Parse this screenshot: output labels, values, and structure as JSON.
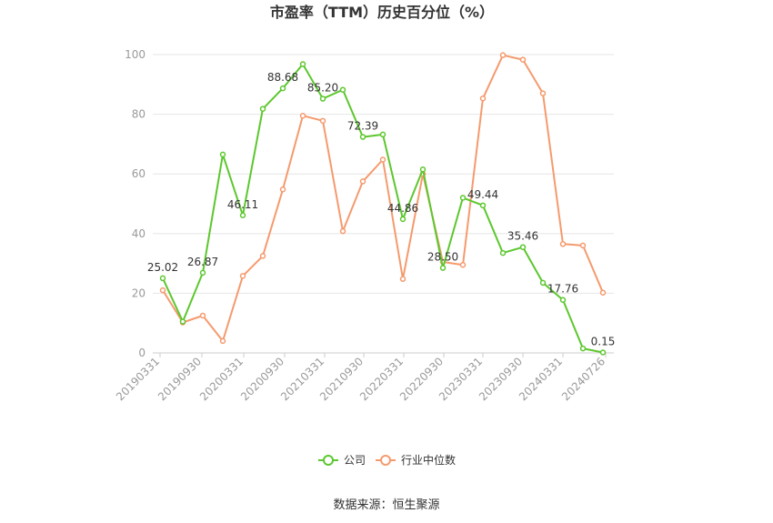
{
  "chart_data": {
    "type": "line",
    "title": "市盈率（TTM）历史百分位（%）",
    "xlabel": "",
    "ylabel": "",
    "ylim": [
      0,
      100
    ],
    "y_ticks": [
      0,
      20,
      40,
      60,
      80,
      100
    ],
    "x_tick_labels": [
      "20190331",
      "20190930",
      "20200331",
      "20200930",
      "20210331",
      "20210930",
      "20220331",
      "20220930",
      "20230331",
      "20230930",
      "20240331",
      "20240726"
    ],
    "grid": true,
    "legend_position": "bottom",
    "series": [
      {
        "name": "公司",
        "color": "#5cc72e",
        "values": [
          25.02,
          10.5,
          26.87,
          66.5,
          46.11,
          81.8,
          88.68,
          96.8,
          85.2,
          88.2,
          72.39,
          73.2,
          44.86,
          61.5,
          28.5,
          52.0,
          49.44,
          33.5,
          35.46,
          23.5,
          17.76,
          1.5,
          0.15
        ],
        "labels": {
          "0": "25.02",
          "2": "26.87",
          "4": "46.11",
          "6": "88.68",
          "8": "85.20",
          "10": "72.39",
          "12": "44.86",
          "14": "28.50",
          "16": "49.44",
          "18": "35.46",
          "20": "17.76",
          "22": "0.15"
        }
      },
      {
        "name": "行业中位数",
        "color": "#f59a6e",
        "values": [
          21.0,
          10.2,
          12.5,
          4.0,
          25.8,
          32.5,
          54.8,
          79.5,
          77.8,
          40.8,
          57.5,
          64.8,
          24.8,
          60.0,
          30.5,
          29.5,
          85.3,
          99.8,
          98.3,
          87.0,
          36.5,
          36.0,
          20.2
        ]
      }
    ]
  },
  "legend": {
    "items": [
      {
        "label": "公司",
        "color": "#5cc72e"
      },
      {
        "label": "行业中位数",
        "color": "#f59a6e"
      }
    ]
  },
  "source": "数据来源：恒生聚源"
}
